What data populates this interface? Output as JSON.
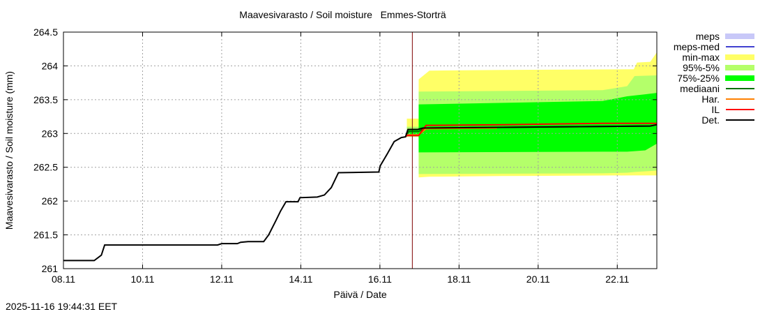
{
  "chart_data": {
    "type": "area",
    "title": "Maavesivarasto / Soil moisture   Emmes-Storträ",
    "xlabel": "Päivä / Date",
    "ylabel": "Maavesivarasto / Soil moisture (mm)",
    "ylim": [
      261,
      264.5
    ],
    "yticks": [
      "261",
      "261.5",
      "262",
      "262.5",
      "263",
      "263.5",
      "264",
      "264.5"
    ],
    "xlim": [
      "08.11 00:00",
      "23.11 00:00"
    ],
    "xticks": [
      "08.11",
      "10.11",
      "12.11",
      "14.11",
      "16.11",
      "18.11",
      "20.11",
      "22.11"
    ],
    "grid": true,
    "legend_placement": "right",
    "forecast_start": "16.11 19:40",
    "colors": {
      "meps": "#c8c8f8",
      "meps-med": "#4040d0",
      "min-max": "#ffff66",
      "95%-5%": "#b4ff6a",
      "75%-25%": "#00ff00",
      "mediaani": "#007000",
      "Har.": "#ff8000",
      "IL": "#ff0000",
      "Det.": "#000000",
      "forecast_line": "#800000"
    },
    "legend": [
      "meps",
      "meps-med",
      "min-max",
      "95%-5%",
      "75%-25%",
      "mediaani",
      "Har.",
      "IL",
      "Det."
    ],
    "bands": [
      {
        "name": "min-max",
        "points": [
          [
            "16.11 16:20",
            262.95,
            263.22
          ],
          [
            "16.11 23:30",
            262.95,
            263.22
          ],
          [
            "16.11 23:31",
            262.35,
            263.8
          ],
          [
            "17.11 06:00",
            262.36,
            263.93
          ],
          [
            "19.11 02:00",
            262.37,
            263.94
          ],
          [
            "22.11 10:00",
            262.38,
            263.95
          ],
          [
            "22.11 12:00",
            262.38,
            264.05
          ],
          [
            "22.11 20:00",
            262.38,
            264.06
          ],
          [
            "23.11 00:00",
            262.38,
            264.2
          ]
        ]
      },
      {
        "name": "95%-5%",
        "points": [
          [
            "16.11 16:20",
            262.95,
            263.1
          ],
          [
            "16.11 23:30",
            262.95,
            263.1
          ],
          [
            "16.11 23:31",
            262.4,
            263.62
          ],
          [
            "21.11 15:00",
            262.41,
            263.64
          ],
          [
            "22.11 06:00",
            262.42,
            263.7
          ],
          [
            "22.11 10:30",
            262.43,
            263.85
          ],
          [
            "23.11 00:00",
            262.45,
            263.86
          ]
        ]
      },
      {
        "name": "75%-25%",
        "points": [
          [
            "16.11 16:20",
            262.97,
            263.05
          ],
          [
            "16.11 23:30",
            262.97,
            263.05
          ],
          [
            "16.11 23:31",
            262.72,
            263.43
          ],
          [
            "21.11 15:00",
            262.73,
            263.48
          ],
          [
            "22.11 06:00",
            262.73,
            263.55
          ],
          [
            "22.11 17:00",
            262.75,
            263.58
          ],
          [
            "23.11 00:00",
            262.85,
            263.6
          ]
        ]
      }
    ],
    "series": [
      {
        "name": "mediaani",
        "points": [
          [
            "16.11 15:30",
            262.95
          ],
          [
            "16.11 17:30",
            263.03
          ],
          [
            "16.11 23:30",
            263.03
          ],
          [
            "17.11 03:00",
            263.08
          ],
          [
            "20.11 20:00",
            263.1
          ],
          [
            "22.11 20:00",
            263.11
          ],
          [
            "23.11 00:00",
            263.13
          ]
        ]
      },
      {
        "name": "Har.",
        "points": [
          [
            "16.11 16:30",
            262.98
          ],
          [
            "16.11 23:30",
            262.98
          ],
          [
            "17.11 04:00",
            263.07
          ],
          [
            "18.11 23:00",
            263.08
          ]
        ]
      },
      {
        "name": "IL",
        "points": [
          [
            "16.11 15:30",
            262.95
          ],
          [
            "16.11 16:30",
            262.97
          ],
          [
            "16.11 23:30",
            262.97
          ],
          [
            "17.11 04:00",
            263.12
          ],
          [
            "19.11 02:00",
            263.13
          ],
          [
            "21.11 15:00",
            263.15
          ],
          [
            "23.11 00:00",
            263.15
          ]
        ]
      },
      {
        "name": "Det.",
        "points": [
          [
            "08.11 00:00",
            261.12
          ],
          [
            "08.11 18:40",
            261.12
          ],
          [
            "08.11 23:00",
            261.2
          ],
          [
            "09.11 01:00",
            261.35
          ],
          [
            "11.11 21:30",
            261.35
          ],
          [
            "12.11 00:00",
            261.37
          ],
          [
            "12.11 09:30",
            261.37
          ],
          [
            "12.11 11:30",
            261.39
          ],
          [
            "12.11 16:00",
            261.4
          ],
          [
            "13.11 01:30",
            261.4
          ],
          [
            "13.11 04:30",
            261.5
          ],
          [
            "13.11 08:40",
            261.7
          ],
          [
            "13.11 11:40",
            261.85
          ],
          [
            "13.11 15:00",
            261.99
          ],
          [
            "13.11 22:20",
            261.99
          ],
          [
            "13.11 23:30",
            262.05
          ],
          [
            "14.11 10:00",
            262.06
          ],
          [
            "14.11 14:20",
            262.09
          ],
          [
            "14.11 18:30",
            262.2
          ],
          [
            "14.11 22:50",
            262.42
          ],
          [
            "15.11 23:20",
            262.43
          ],
          [
            "16.11 00:10",
            262.52
          ],
          [
            "16.11 04:30",
            262.7
          ],
          [
            "16.11 08:40",
            262.88
          ],
          [
            "16.11 13:00",
            262.94
          ],
          [
            "16.11 15:30",
            262.95
          ],
          [
            "16.11 17:00",
            263.06
          ],
          [
            "16.11 23:00",
            263.06
          ],
          [
            "17.11 02:00",
            263.08
          ],
          [
            "20.11 20:00",
            263.1
          ],
          [
            "22.11 20:00",
            263.11
          ],
          [
            "23.11 00:00",
            263.13
          ]
        ]
      }
    ]
  },
  "timestamp": "2025-11-16 19:44:31 EET"
}
